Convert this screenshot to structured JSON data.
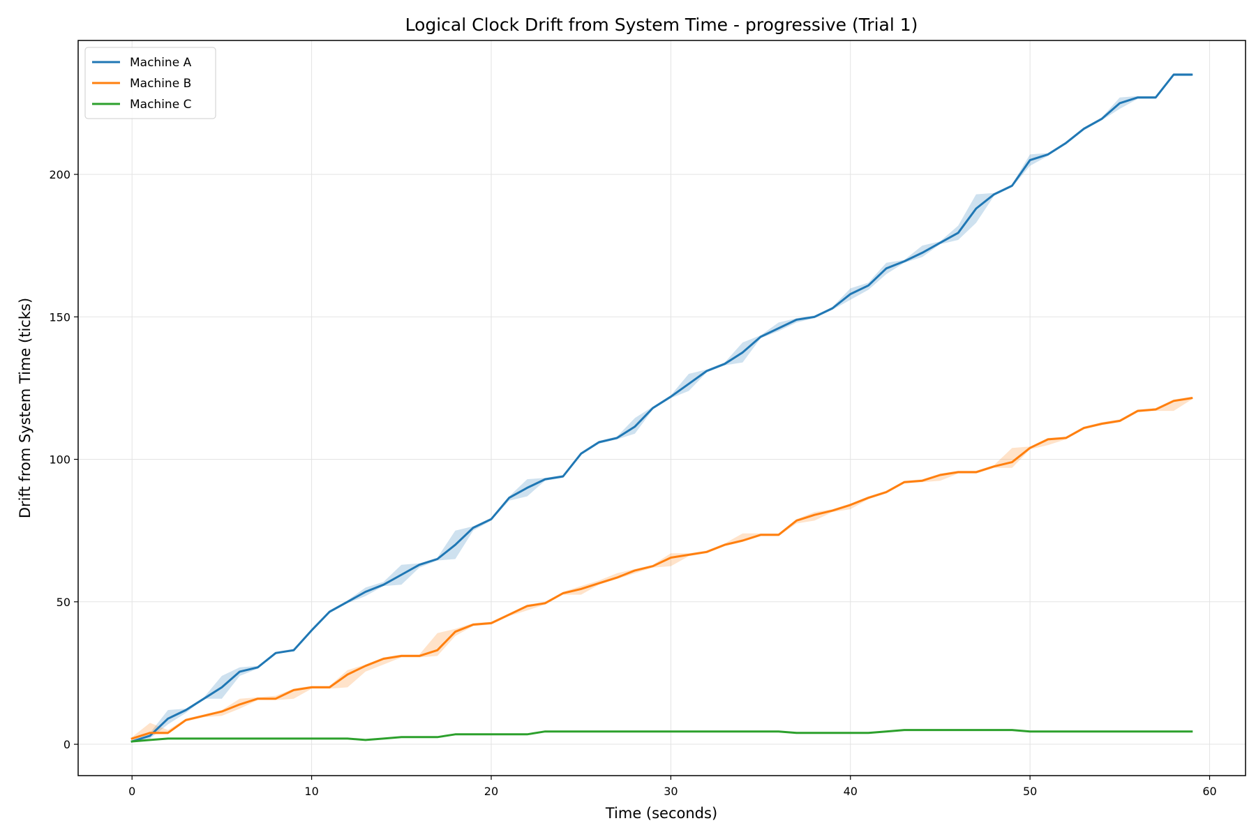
{
  "chart_data": {
    "type": "line",
    "title": "Logical Clock Drift from System Time - progressive (Trial 1)",
    "xlabel": "Time (seconds)",
    "ylabel": "Drift from System Time (ticks)",
    "xlim": [
      -3,
      62
    ],
    "ylim": [
      -11,
      247
    ],
    "xticks": [
      0,
      10,
      20,
      30,
      40,
      50,
      60
    ],
    "yticks": [
      0,
      50,
      100,
      150,
      200
    ],
    "grid": true,
    "legend": "upper left",
    "x": [
      0,
      1,
      2,
      3,
      4,
      5,
      6,
      7,
      8,
      9,
      10,
      11,
      12,
      13,
      14,
      15,
      16,
      17,
      18,
      19,
      20,
      21,
      22,
      23,
      24,
      25,
      26,
      27,
      28,
      29,
      30,
      31,
      32,
      33,
      34,
      35,
      36,
      37,
      38,
      39,
      40,
      41,
      42,
      43,
      44,
      45,
      46,
      47,
      48,
      49,
      50,
      51,
      52,
      53,
      54,
      55,
      56,
      57,
      58,
      59
    ],
    "series": [
      {
        "name": "Machine A",
        "color": "#1f77b4",
        "values": [
          1,
          3,
          9,
          12,
          16,
          20,
          25.5,
          27,
          32,
          33,
          40,
          46.5,
          50,
          53.5,
          56,
          59.5,
          63,
          65,
          70,
          76,
          79,
          86.5,
          90,
          93,
          94,
          102,
          106,
          107.5,
          111.5,
          118,
          122,
          126.5,
          131,
          133.5,
          137.5,
          143,
          146,
          149,
          150,
          153,
          158,
          161,
          167,
          169.5,
          172.5,
          176,
          179.5,
          188,
          193,
          196,
          205,
          207,
          211,
          216,
          219.5,
          225,
          227,
          227,
          235,
          235
        ],
        "lower": [
          1,
          2,
          7,
          11,
          16,
          16,
          24,
          26.5,
          32,
          32.5,
          40,
          46,
          49.5,
          52,
          55.5,
          56,
          62,
          64.5,
          65,
          75,
          78.5,
          85.5,
          87,
          92.5,
          93.5,
          101.5,
          105.5,
          107,
          109,
          117.5,
          121.5,
          124,
          130.5,
          133,
          134,
          142.5,
          145,
          148,
          149.5,
          152.5,
          156,
          159.5,
          165,
          169,
          171,
          175.5,
          177,
          183,
          192.5,
          195.5,
          203,
          206.5,
          210.5,
          215.5,
          219,
          223,
          226.5,
          226.5,
          234.5,
          234.5
        ],
        "upper": [
          1.5,
          4,
          12,
          12.5,
          16.5,
          24,
          27,
          27.5,
          32.5,
          33.5,
          40.5,
          47,
          50.5,
          55,
          57,
          63,
          63.5,
          65.5,
          75,
          76.5,
          79.5,
          87,
          93,
          93.5,
          94.5,
          102.5,
          106.5,
          108,
          114.5,
          118.5,
          122.5,
          130,
          131.5,
          134,
          141,
          143.5,
          148,
          149.5,
          150.5,
          153.5,
          160,
          162,
          169,
          170,
          175,
          176.5,
          182,
          193,
          193.5,
          196.5,
          207,
          207.5,
          211.5,
          216.5,
          220,
          227,
          227.5,
          227.5,
          235.5,
          235.5
        ]
      },
      {
        "name": "Machine B",
        "color": "#ff7f0e",
        "values": [
          2,
          4,
          4,
          8.5,
          10,
          11.5,
          14,
          16,
          16,
          19,
          20,
          20,
          24.5,
          27.5,
          30,
          31,
          31,
          33,
          39.5,
          42,
          42.5,
          45.5,
          48.5,
          49.5,
          53,
          54.5,
          56.5,
          58.5,
          61,
          62.5,
          65.5,
          66.5,
          67.5,
          70,
          71.5,
          73.5,
          73.5,
          78.5,
          80.5,
          82,
          84,
          86.5,
          88.5,
          92,
          92.5,
          94.5,
          95.5,
          95.5,
          97.5,
          99,
          104,
          107,
          107.5,
          111,
          112.5,
          113.5,
          117,
          117.5,
          120.5,
          121.5
        ],
        "lower": [
          1.5,
          3.5,
          3.5,
          8,
          9.5,
          10,
          12.5,
          15.5,
          15.5,
          16,
          19.5,
          19.5,
          20,
          25.5,
          28,
          30.5,
          30.5,
          31,
          38,
          41.5,
          42,
          45,
          47,
          49,
          52.5,
          52.5,
          56,
          58,
          60,
          62,
          62.5,
          66,
          67,
          69.5,
          71,
          73,
          73,
          77.5,
          78.5,
          81.5,
          82.5,
          86,
          88,
          91.5,
          92,
          92.5,
          95,
          95,
          97,
          97,
          103.5,
          105,
          107,
          110.5,
          112,
          113,
          116.5,
          117,
          117,
          121
        ],
        "upper": [
          2.5,
          7.5,
          5,
          9,
          10.5,
          12,
          16,
          16.5,
          17,
          19.5,
          20.5,
          20.5,
          26,
          28,
          30.5,
          31.5,
          31.5,
          39,
          40.5,
          42.5,
          43,
          46,
          49,
          50,
          53.5,
          55.5,
          57.5,
          60,
          61.5,
          63,
          67,
          67,
          68,
          70.5,
          74,
          74,
          74,
          79,
          81.5,
          82.5,
          84.5,
          87,
          89,
          92.5,
          93,
          95,
          96,
          96,
          98,
          104,
          104.5,
          107.5,
          108,
          111.5,
          113,
          114,
          117.5,
          118,
          121,
          122
        ]
      },
      {
        "name": "Machine C",
        "color": "#2ca02c",
        "values": [
          1,
          1.5,
          2,
          2,
          2,
          2,
          2,
          2,
          2,
          2,
          2,
          2,
          2,
          1.5,
          2,
          2.5,
          2.5,
          2.5,
          3.5,
          3.5,
          3.5,
          3.5,
          3.5,
          4.5,
          4.5,
          4.5,
          4.5,
          4.5,
          4.5,
          4.5,
          4.5,
          4.5,
          4.5,
          4.5,
          4.5,
          4.5,
          4.5,
          4,
          4,
          4,
          4,
          4,
          4.5,
          5,
          5,
          5,
          5,
          5,
          5,
          5,
          4.5,
          4.5,
          4.5,
          4.5,
          4.5,
          4.5,
          4.5,
          4.5,
          4.5,
          4.5
        ]
      }
    ]
  }
}
